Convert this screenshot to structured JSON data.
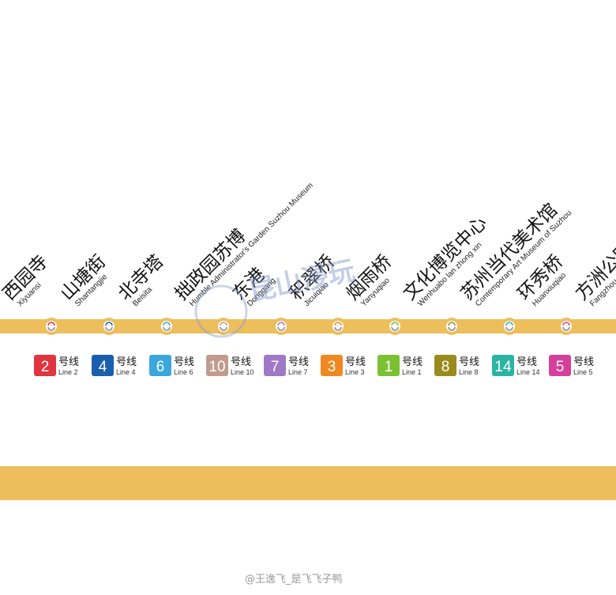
{
  "line_color": "#ecbe5c",
  "stations": [
    {
      "cn": "西园寺",
      "en": "Xiyuansi",
      "transfer": {
        "num": "2",
        "label_cn": "号线",
        "label_en": "Line 2",
        "color": "#e0353e"
      }
    },
    {
      "cn": "山塘街",
      "en": "Shantangjie",
      "transfer": {
        "num": "4",
        "label_cn": "号线",
        "label_en": "Line 4",
        "color": "#1a5fae"
      }
    },
    {
      "cn": "北寺塔",
      "en": "Beisita",
      "transfer": {
        "num": "6",
        "label_cn": "号线",
        "label_en": "Line 6",
        "color": "#3ba7dc"
      }
    },
    {
      "cn": "拙政园苏博",
      "en": "Humble Administrator's Garden Suzhou Museum",
      "transfer": {
        "num": "10",
        "label_cn": "号线",
        "label_en": "Line 10",
        "color": "#c19c8c"
      }
    },
    {
      "cn": "东港",
      "en": "Donggang",
      "transfer": {
        "num": "7",
        "label_cn": "号线",
        "label_en": "Line 7",
        "color": "#9f79c6"
      }
    },
    {
      "cn": "积翠桥",
      "en": "Jicuiqiao",
      "transfer": {
        "num": "3",
        "label_cn": "号线",
        "label_en": "Line 3",
        "color": "#f08821"
      }
    },
    {
      "cn": "烟雨桥",
      "en": "Yanyuqiao",
      "transfer": {
        "num": "1",
        "label_cn": "号线",
        "label_en": "Line 1",
        "color": "#7cc034"
      }
    },
    {
      "cn": "文化博览中心",
      "en": "Wenhuabo lan zhong xin",
      "transfer": {
        "num": "8",
        "label_cn": "号线",
        "label_en": "Line 8",
        "color": "#9a8b1e"
      }
    },
    {
      "cn": "苏州当代美术馆",
      "en": "Contemporary Art Museum of Suzhou",
      "transfer": {
        "num": "14",
        "label_cn": "号线",
        "label_en": "Line 14",
        "color": "#2bb3a6"
      }
    },
    {
      "cn": "环秀桥",
      "en": "Huanxiuqiao",
      "transfer": {
        "num": "5",
        "label_cn": "号线",
        "label_en": "Line 5",
        "color": "#d63f9a"
      }
    },
    {
      "cn": "方洲公园",
      "en": "Fangzhou",
      "transfer": null
    }
  ],
  "watermark": "昆山浸玩",
  "credit": "@王逸飞_是飞飞子鸭"
}
